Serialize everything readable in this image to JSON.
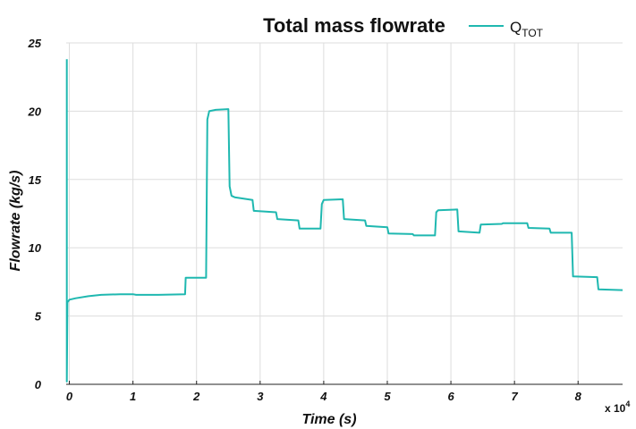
{
  "chart_data": {
    "type": "line",
    "title": "Total mass flowrate",
    "xlabel": "Time (s)",
    "ylabel": "Flowrate (kg/s)",
    "x_multiplier_label": "x 10",
    "x_multiplier_exponent": "4",
    "xlim": [
      -0.05,
      8.7
    ],
    "ylim": [
      0,
      25
    ],
    "x_ticks": [
      0,
      1,
      2,
      3,
      4,
      5,
      6,
      7,
      8
    ],
    "x_tick_labels": [
      "0",
      "1",
      "2",
      "3",
      "4",
      "5",
      "6",
      "7",
      "8"
    ],
    "y_ticks": [
      0,
      5,
      10,
      15,
      20,
      25
    ],
    "y_tick_labels": [
      "0",
      "5",
      "10",
      "15",
      "20",
      "25"
    ],
    "grid": true,
    "legend_position": "top-right",
    "series": [
      {
        "name": "Q",
        "name_subscript": "TOT",
        "color": "#1fb8b0",
        "x": [
          -0.04,
          -0.04,
          -0.03,
          0.0,
          0.1,
          0.3,
          0.5,
          0.8,
          1.0,
          1.05,
          1.4,
          1.82,
          1.83,
          2.15,
          2.17,
          2.2,
          2.3,
          2.5,
          2.52,
          2.55,
          2.6,
          2.88,
          2.9,
          3.25,
          3.27,
          3.6,
          3.62,
          3.95,
          3.97,
          4.0,
          4.3,
          4.32,
          4.65,
          4.67,
          5.0,
          5.02,
          5.4,
          5.42,
          5.75,
          5.77,
          5.8,
          6.1,
          6.12,
          6.45,
          6.47,
          6.8,
          6.82,
          7.2,
          7.22,
          7.55,
          7.57,
          7.9,
          7.92,
          8.3,
          8.32,
          8.7
        ],
        "y": [
          23.8,
          0.2,
          6.0,
          6.2,
          6.3,
          6.45,
          6.55,
          6.6,
          6.6,
          6.55,
          6.55,
          6.6,
          7.8,
          7.8,
          19.4,
          20.0,
          20.1,
          20.15,
          14.5,
          13.8,
          13.7,
          13.5,
          12.7,
          12.6,
          12.1,
          12.0,
          11.4,
          11.4,
          13.2,
          13.5,
          13.55,
          12.1,
          12.0,
          11.6,
          11.5,
          11.05,
          11.0,
          10.9,
          10.9,
          12.6,
          12.75,
          12.8,
          11.2,
          11.1,
          11.7,
          11.75,
          11.8,
          11.8,
          11.45,
          11.4,
          11.1,
          11.1,
          7.9,
          7.85,
          6.95,
          6.9
        ]
      }
    ]
  }
}
